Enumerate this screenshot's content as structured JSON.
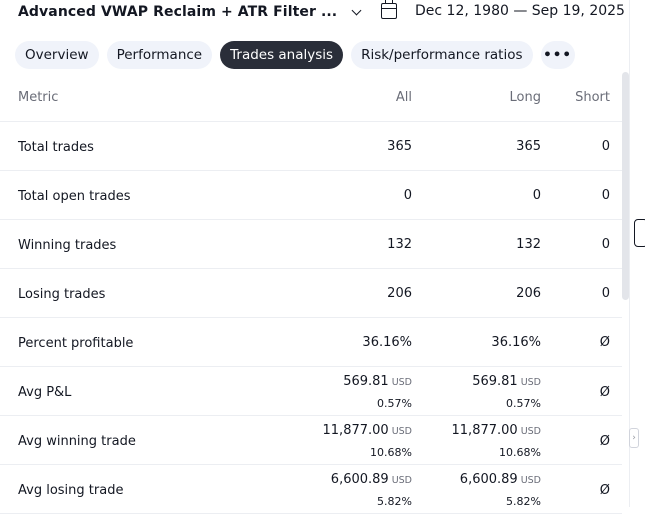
{
  "header": {
    "strategy_name": "Advanced VWAP Reclaim + ATR Filter ...",
    "date_range": "Dec 12, 1980 — Sep 19, 2025",
    "icons": [
      "chevron-down-icon",
      "calendar-icon"
    ]
  },
  "tabs": [
    {
      "label": "Overview",
      "active": false
    },
    {
      "label": "Performance",
      "active": false
    },
    {
      "label": "Trades analysis",
      "active": true
    },
    {
      "label": "Risk/performance ratios",
      "active": false
    },
    {
      "label": "•••",
      "active": false
    }
  ],
  "table": {
    "columns": {
      "metric": "Metric",
      "all": "All",
      "long": "Long",
      "short": "Short"
    },
    "rows": [
      {
        "label": "Total trades",
        "all": "365",
        "long": "365",
        "short": "0"
      },
      {
        "label": "Total open trades",
        "all": "0",
        "long": "0",
        "short": "0"
      },
      {
        "label": "Winning trades",
        "all": "132",
        "long": "132",
        "short": "0"
      },
      {
        "label": "Losing trades",
        "all": "206",
        "long": "206",
        "short": "0"
      },
      {
        "label": "Percent profitable",
        "all": "36.16%",
        "long": "36.16%",
        "short": "Ø"
      },
      {
        "label": "Avg P&L",
        "all": "569.81",
        "all_unit": "USD",
        "all_pct": "0.57%",
        "long": "569.81",
        "long_unit": "USD",
        "long_pct": "0.57%",
        "short": "Ø"
      },
      {
        "label": "Avg winning trade",
        "all": "11,877.00",
        "all_unit": "USD",
        "all_pct": "10.68%",
        "long": "11,877.00",
        "long_unit": "USD",
        "long_pct": "10.68%",
        "short": "Ø"
      },
      {
        "label": "Avg losing trade",
        "all": "6,600.89",
        "all_unit": "USD",
        "all_pct": "5.82%",
        "long": "6,600.89",
        "long_unit": "USD",
        "long_pct": "5.82%",
        "short": "Ø"
      }
    ]
  }
}
